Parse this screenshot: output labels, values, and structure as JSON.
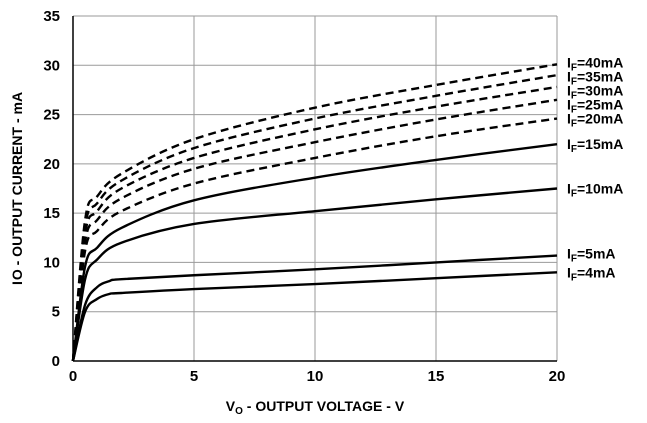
{
  "chart_data": {
    "type": "line",
    "xlabel": {
      "main": "V",
      "sub": "O",
      "rest": " - OUTPUT VOLTAGE - V"
    },
    "ylabel": {
      "main": "I",
      "sub": "O",
      "rest": " - OUTPUT CURRENT - mA"
    },
    "xlim": [
      0,
      20
    ],
    "ylim": [
      0,
      35
    ],
    "xticks": [
      0,
      5,
      10,
      15,
      20
    ],
    "yticks": [
      0,
      5,
      10,
      15,
      20,
      25,
      30,
      35
    ],
    "grid": true,
    "series": [
      {
        "label": {
          "main": "I",
          "sub": "F",
          "rest": "=40mA"
        },
        "style": "dashed",
        "x": [
          0,
          0.5,
          1,
          2,
          5,
          10,
          15,
          20
        ],
        "y": [
          0,
          14.3,
          16.7,
          19.0,
          22.5,
          25.7,
          28.0,
          30.1
        ]
      },
      {
        "label": {
          "main": "I",
          "sub": "F",
          "rest": "=35mA"
        },
        "style": "dashed",
        "x": [
          0,
          0.5,
          1,
          2,
          5,
          10,
          15,
          20
        ],
        "y": [
          0,
          13.6,
          16.0,
          18.3,
          21.6,
          24.6,
          26.9,
          29.0
        ]
      },
      {
        "label": {
          "main": "I",
          "sub": "F",
          "rest": "=30mA"
        },
        "style": "dashed",
        "x": [
          0,
          0.5,
          1,
          2,
          5,
          10,
          15,
          20
        ],
        "y": [
          0,
          12.9,
          15.2,
          17.5,
          20.6,
          23.5,
          25.8,
          27.8
        ]
      },
      {
        "label": {
          "main": "I",
          "sub": "F",
          "rest": "=25mA"
        },
        "style": "dashed",
        "x": [
          0,
          0.5,
          1,
          2,
          5,
          10,
          15,
          20
        ],
        "y": [
          0,
          12.1,
          14.3,
          16.5,
          19.5,
          22.2,
          24.5,
          26.5
        ]
      },
      {
        "label": {
          "main": "I",
          "sub": "F",
          "rest": "=20mA"
        },
        "style": "dashed",
        "x": [
          0,
          0.5,
          1,
          2,
          5,
          10,
          15,
          20
        ],
        "y": [
          0,
          11.2,
          13.2,
          15.2,
          18.0,
          20.6,
          22.8,
          24.6
        ]
      },
      {
        "label": {
          "main": "I",
          "sub": "F",
          "rest": "=15mA"
        },
        "style": "solid",
        "x": [
          0,
          0.5,
          1,
          2,
          5,
          10,
          15,
          20
        ],
        "y": [
          0,
          9.6,
          11.5,
          13.5,
          16.3,
          18.6,
          20.4,
          22.0
        ]
      },
      {
        "label": {
          "main": "I",
          "sub": "F",
          "rest": "=10mA"
        },
        "style": "solid",
        "x": [
          0,
          0.5,
          1,
          2,
          5,
          10,
          15,
          20
        ],
        "y": [
          0,
          8.3,
          10.3,
          12.0,
          13.9,
          15.2,
          16.4,
          17.5
        ]
      },
      {
        "label": {
          "main": "I",
          "sub": "F",
          "rest": "=5mA"
        },
        "style": "solid",
        "x": [
          0,
          0.5,
          1,
          1.5,
          2,
          5,
          10,
          15,
          20
        ],
        "y": [
          0,
          5.7,
          7.5,
          8.1,
          8.3,
          8.7,
          9.3,
          10.0,
          10.7
        ]
      },
      {
        "label": {
          "main": "I",
          "sub": "F",
          "rest": "=4mA"
        },
        "style": "solid",
        "x": [
          0,
          0.5,
          1,
          1.5,
          2,
          5,
          10,
          15,
          20
        ],
        "y": [
          0,
          5.0,
          6.3,
          6.8,
          6.9,
          7.3,
          7.8,
          8.4,
          9.0
        ]
      }
    ]
  }
}
